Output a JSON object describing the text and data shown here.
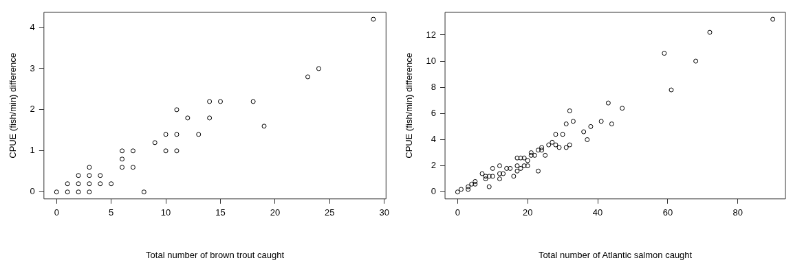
{
  "chart_data": [
    {
      "type": "scatter",
      "xlabel": "Total number of brown trout caught",
      "ylabel": "CPUE (fish/min) difference",
      "color": "#000000",
      "marker": "circle",
      "grid": false,
      "legend": false,
      "x": [
        0,
        1,
        2,
        3,
        1,
        2,
        3,
        4,
        5,
        2,
        3,
        4,
        3,
        6,
        7,
        6,
        6,
        7,
        8,
        9,
        10,
        11,
        10,
        11,
        11,
        12,
        13,
        14,
        14,
        15,
        18,
        19,
        23,
        24,
        29
      ],
      "values": [
        0,
        0,
        0,
        0,
        0.2,
        0.2,
        0.2,
        0.2,
        0.2,
        0.4,
        0.4,
        0.4,
        0.6,
        0.6,
        0.6,
        0.8,
        1.0,
        1.0,
        0,
        1.2,
        1.4,
        1.4,
        1.0,
        1.0,
        2.0,
        1.8,
        1.4,
        1.8,
        2.2,
        2.2,
        2.2,
        1.6,
        2.8,
        3.0,
        4.2
      ],
      "xlim": [
        -1.16,
        30.16
      ],
      "ylim": [
        -0.168,
        4.368
      ],
      "xticks": [
        0,
        5,
        10,
        15,
        20,
        25,
        30
      ],
      "yticks": [
        0,
        1,
        2,
        3,
        4
      ]
    },
    {
      "type": "scatter",
      "xlabel": "Total number of Atlantic salmon caught",
      "ylabel": "CPUE (fish/min) difference",
      "color": "#000000",
      "marker": "circle",
      "grid": false,
      "legend": false,
      "x": [
        0,
        1,
        3,
        3,
        4,
        5,
        5,
        7,
        8,
        8,
        9,
        9,
        10,
        10,
        12,
        12,
        12,
        13,
        14,
        15,
        16,
        17,
        18,
        19,
        17,
        17,
        18,
        19,
        20,
        20,
        21,
        21,
        22,
        23,
        24,
        24,
        23,
        25,
        26,
        27,
        28,
        28,
        29,
        30,
        31,
        31,
        32,
        32,
        33,
        36,
        37,
        38,
        41,
        43,
        44,
        47,
        59,
        61,
        68,
        72,
        90
      ],
      "values": [
        0,
        0.2,
        0.4,
        0.2,
        0.6,
        0.8,
        0.6,
        1.4,
        1.2,
        1.0,
        1.2,
        0.4,
        1.2,
        1.8,
        2.0,
        1.4,
        1.0,
        1.4,
        1.8,
        1.8,
        1.2,
        2.6,
        2.6,
        2.6,
        2.0,
        1.6,
        1.8,
        2.0,
        2.0,
        2.4,
        3.0,
        2.8,
        2.8,
        3.2,
        3.2,
        3.4,
        1.6,
        2.8,
        3.6,
        3.8,
        3.6,
        4.4,
        3.4,
        4.4,
        3.4,
        5.2,
        3.6,
        6.2,
        5.4,
        4.6,
        4.0,
        5.0,
        5.4,
        6.8,
        5.2,
        6.4,
        10.6,
        7.8,
        10.0,
        12.2,
        13.2
      ],
      "xlim": [
        -3.6,
        93.6
      ],
      "ylim": [
        -0.528,
        13.728
      ],
      "xticks": [
        0,
        20,
        40,
        60,
        80
      ],
      "yticks": [
        0,
        2,
        4,
        6,
        8,
        10,
        12
      ]
    }
  ]
}
